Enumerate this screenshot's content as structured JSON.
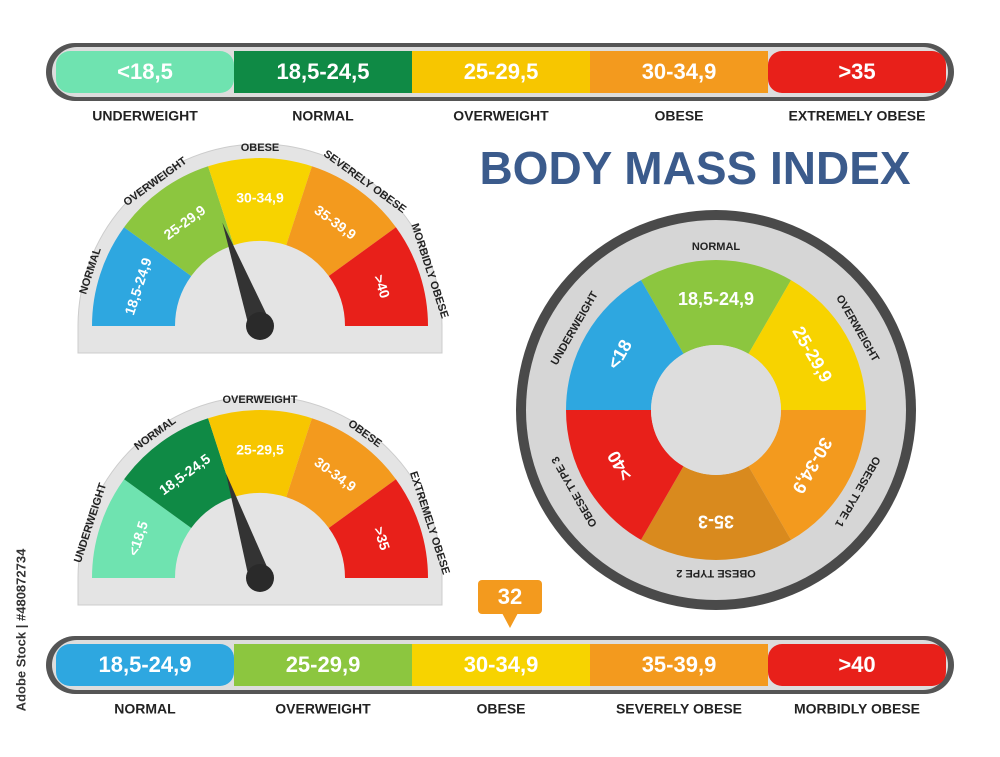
{
  "title": "BODY MASS INDEX",
  "top_bar": {
    "segments": [
      {
        "range": "<18,5",
        "label": "UNDERWEIGHT"
      },
      {
        "range": "18,5-24,5",
        "label": "NORMAL"
      },
      {
        "range": "25-29,5",
        "label": "OVERWEIGHT"
      },
      {
        "range": "30-34,9",
        "label": "OBESE"
      },
      {
        "range": ">35",
        "label": "EXTREMELY OBESE"
      }
    ]
  },
  "gauge_1": {
    "segments": [
      {
        "range": "18,5-24,9",
        "label": "NORMAL"
      },
      {
        "range": "25-29,9",
        "label": "OVERWEIGHT"
      },
      {
        "range": "30-34,9",
        "label": "OBESE"
      },
      {
        "range": "35-39,9",
        "label": "SEVERELY OBESE"
      },
      {
        "range": ">40",
        "label": "MORBIDLY OBESE"
      }
    ]
  },
  "gauge_2": {
    "segments": [
      {
        "range": "<18,5",
        "label": "UNDERWEIGHT"
      },
      {
        "range": "18,5-24,5",
        "label": "NORMAL"
      },
      {
        "range": "25-29,5",
        "label": "OVERWEIGHT"
      },
      {
        "range": "30-34,9",
        "label": "OBESE"
      },
      {
        "range": ">35",
        "label": "EXTREMELY OBESE"
      }
    ]
  },
  "round_gauge": {
    "segments": [
      {
        "range": "18,5-24,9",
        "label": "NORMAL"
      },
      {
        "range": "25-29,9",
        "label": "OVERWEIGHT"
      },
      {
        "range": "30-34,9",
        "label": "OBESE TYPE 1"
      },
      {
        "range": "35-3",
        "label": "OBESE TYPE 2"
      },
      {
        "range": ">40",
        "label": "OBESE TYPE 3"
      },
      {
        "range": "<18",
        "label": "UNDERWEIGHT"
      }
    ]
  },
  "bottom_bar": {
    "marker": "32",
    "segments": [
      {
        "range": "18,5-24,9",
        "label": "NORMAL"
      },
      {
        "range": "25-29,9",
        "label": "OVERWEIGHT"
      },
      {
        "range": "30-34,9",
        "label": "OBESE"
      },
      {
        "range": "35-39,9",
        "label": "SEVERELY OBESE"
      },
      {
        "range": ">40",
        "label": "MORBIDLY OBESE"
      }
    ]
  },
  "side_text": "Adobe Stock | #480872734"
}
